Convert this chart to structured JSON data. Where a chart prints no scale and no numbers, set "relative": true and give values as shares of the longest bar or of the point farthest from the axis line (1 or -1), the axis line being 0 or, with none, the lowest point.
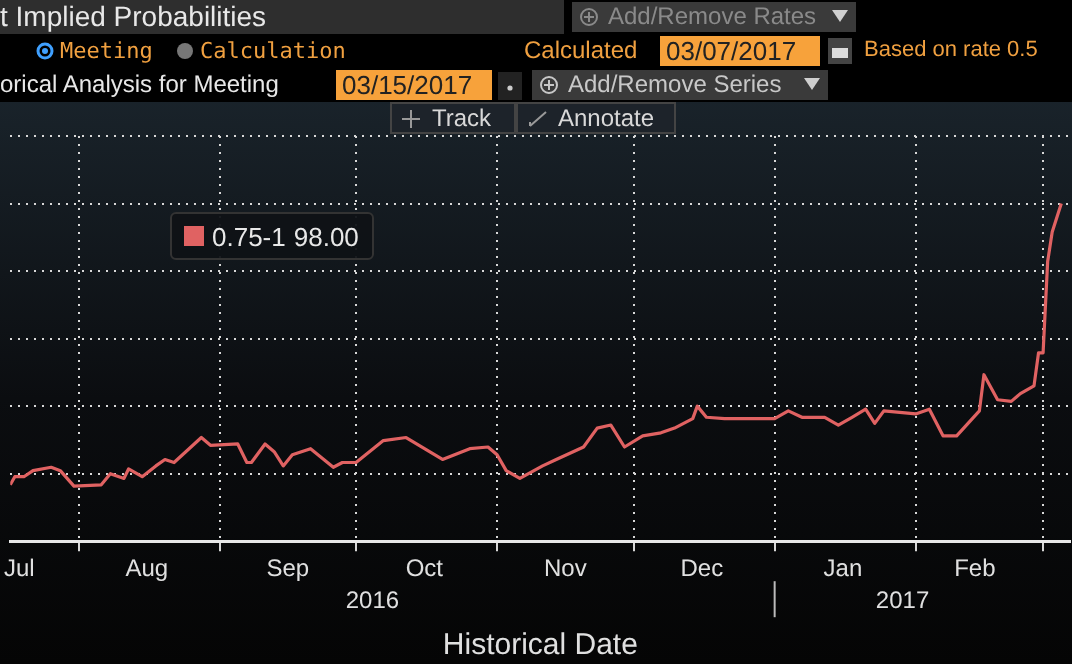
{
  "chart_data": {
    "type": "line",
    "title": "t Implied Probabilities",
    "xlabel": "Historical Date",
    "relative": true,
    "legend": "top left",
    "grid": true,
    "marker": "none",
    "line_style": "solid",
    "x": [
      "2016-07-17",
      "2016-07-18",
      "2016-07-20",
      "2016-07-22",
      "2016-07-26",
      "2016-07-28",
      "2016-07-31",
      "2016-08-06",
      "2016-08-08",
      "2016-08-11",
      "2016-08-12",
      "2016-08-15",
      "2016-08-18",
      "2016-08-20",
      "2016-08-22",
      "2016-08-28",
      "2016-08-30",
      "2016-09-05",
      "2016-09-07",
      "2016-09-08",
      "2016-09-11",
      "2016-09-13",
      "2016-09-15",
      "2016-09-17",
      "2016-09-21",
      "2016-09-26",
      "2016-09-28",
      "2016-10-01",
      "2016-10-07",
      "2016-10-12",
      "2016-10-20",
      "2016-10-26",
      "2016-10-30",
      "2016-11-01",
      "2016-11-03",
      "2016-11-06",
      "2016-11-11",
      "2016-11-14",
      "2016-11-20",
      "2016-11-23",
      "2016-11-26",
      "2016-11-29",
      "2016-12-03",
      "2016-12-07",
      "2016-12-10",
      "2016-12-14",
      "2016-12-15",
      "2016-12-17",
      "2016-12-21",
      "2017-01-01",
      "2017-01-04",
      "2017-01-07",
      "2017-01-12",
      "2017-01-15",
      "2017-01-18",
      "2017-01-21",
      "2017-01-23",
      "2017-01-25",
      "2017-02-01",
      "2017-02-04",
      "2017-02-07",
      "2017-02-10",
      "2017-02-15",
      "2017-02-16",
      "2017-02-19",
      "2017-02-22",
      "2017-02-24",
      "2017-02-27",
      "2017-02-28",
      "2017-03-01",
      "2017-03-02",
      "2017-03-03",
      "2017-03-05"
    ],
    "series": [
      {
        "name": "0.75-1",
        "color": "#e06262",
        "values": [
          0.167,
          0.191,
          0.191,
          0.209,
          0.219,
          0.209,
          0.163,
          0.167,
          0.2,
          0.186,
          0.214,
          0.191,
          0.223,
          0.242,
          0.233,
          0.307,
          0.284,
          0.288,
          0.233,
          0.233,
          0.288,
          0.265,
          0.223,
          0.256,
          0.274,
          0.219,
          0.233,
          0.233,
          0.298,
          0.307,
          0.242,
          0.274,
          0.279,
          0.256,
          0.209,
          0.186,
          0.223,
          0.242,
          0.279,
          0.335,
          0.344,
          0.279,
          0.312,
          0.321,
          0.335,
          0.363,
          0.4,
          0.367,
          0.363,
          0.363,
          0.386,
          0.367,
          0.367,
          0.344,
          0.367,
          0.391,
          0.349,
          0.386,
          0.377,
          0.391,
          0.312,
          0.312,
          0.386,
          0.493,
          0.419,
          0.414,
          0.437,
          0.46,
          0.558,
          0.558,
          0.828,
          0.916,
          1
        ]
      }
    ],
    "xlim": [
      "2016-07-17",
      "2017-03-07"
    ],
    "xticks": [
      {
        "value": "2016-07-19",
        "label": "Jul"
      },
      {
        "value": "2016-08-01",
        "label": null
      },
      {
        "value": "2016-08-16",
        "label": "Aug"
      },
      {
        "value": "2016-09-01",
        "label": null
      },
      {
        "value": "2016-09-16",
        "label": "Sep"
      },
      {
        "value": "2016-10-01",
        "label": null
      },
      {
        "value": "2016-10-16",
        "label": "Oct"
      },
      {
        "value": "2016-11-01",
        "label": null
      },
      {
        "value": "2016-11-16",
        "label": "Nov"
      },
      {
        "value": "2016-12-01",
        "label": null
      },
      {
        "value": "2016-12-16",
        "label": "Dec"
      },
      {
        "value": "2017-01-01",
        "label": null
      },
      {
        "value": "2017-01-16",
        "label": "Jan"
      },
      {
        "value": "2017-02-01",
        "label": null
      },
      {
        "value": "2017-02-14",
        "label": "Feb"
      },
      {
        "value": "2017-03-01",
        "label": null
      }
    ],
    "annotations": [
      "Add/Remove Rates",
      "Meeting",
      "Calculation",
      "Calculated",
      "03/07/2017",
      "Based on rate 0.5",
      "orical Analysis for Meeting",
      "03/15/2017",
      "Add/Remove Series",
      "Track",
      "Annotate",
      "98.00",
      "2016",
      "2017"
    ]
  }
}
